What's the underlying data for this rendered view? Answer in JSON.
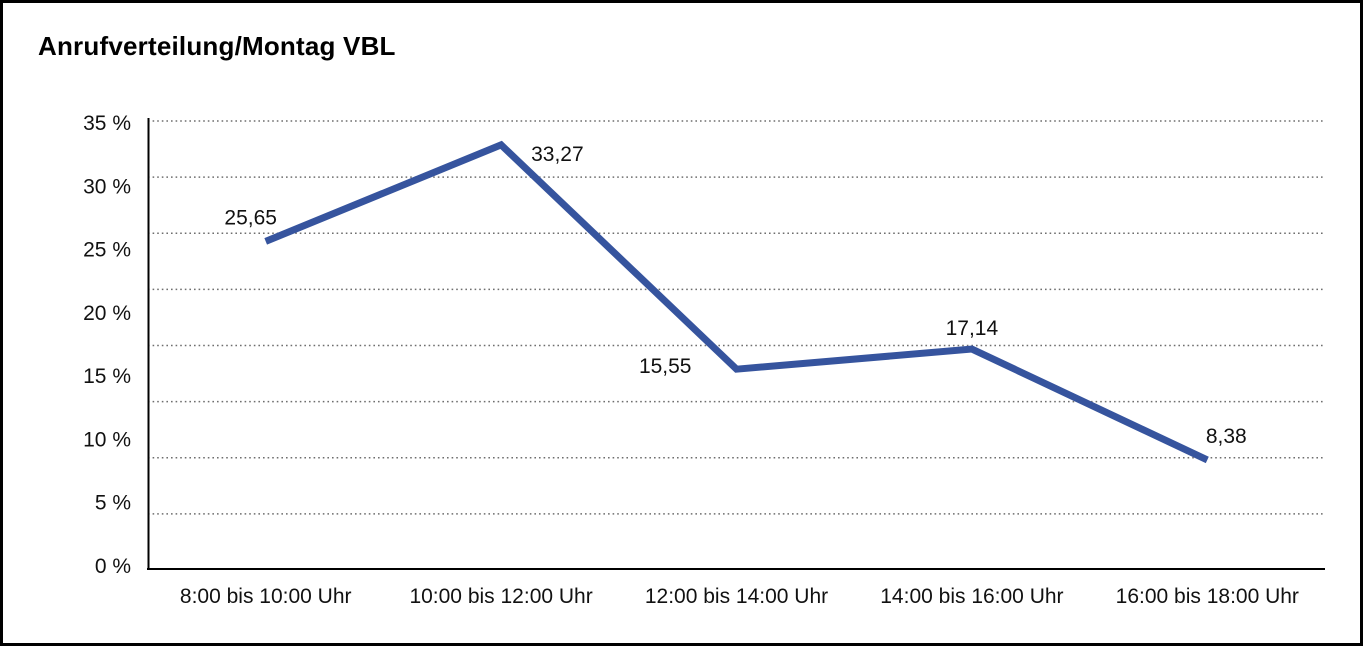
{
  "title": "Anrufverteilung/Montag VBL",
  "chart_data": {
    "type": "line",
    "title": "Anrufverteilung/Montag VBL",
    "categories": [
      "8:00 bis 10:00 Uhr",
      "10:00 bis 12:00 Uhr",
      "12:00 bis 14:00 Uhr",
      "14:00 bis 16:00 Uhr",
      "16:00 bis 18:00 Uhr"
    ],
    "values": [
      25.65,
      33.27,
      15.55,
      17.14,
      8.38
    ],
    "value_labels": [
      "25,65",
      "33,27",
      "15,55",
      "17,14",
      "8,38"
    ],
    "ytick_labels": [
      "35 %",
      "30 %",
      "25 %",
      "20 %",
      "15 %",
      "10 %",
      "5 %",
      "0 %"
    ],
    "ylim": [
      0,
      35
    ],
    "ytick_step": 5,
    "xlabel": "",
    "ylabel": "",
    "legend": "none",
    "grid": "horizontal-dotted",
    "line_color": "#36549e",
    "axis_color": "#000000",
    "grid_color": "#6e6e6e",
    "text_color": "#111111",
    "background_color": "#ffffff"
  }
}
